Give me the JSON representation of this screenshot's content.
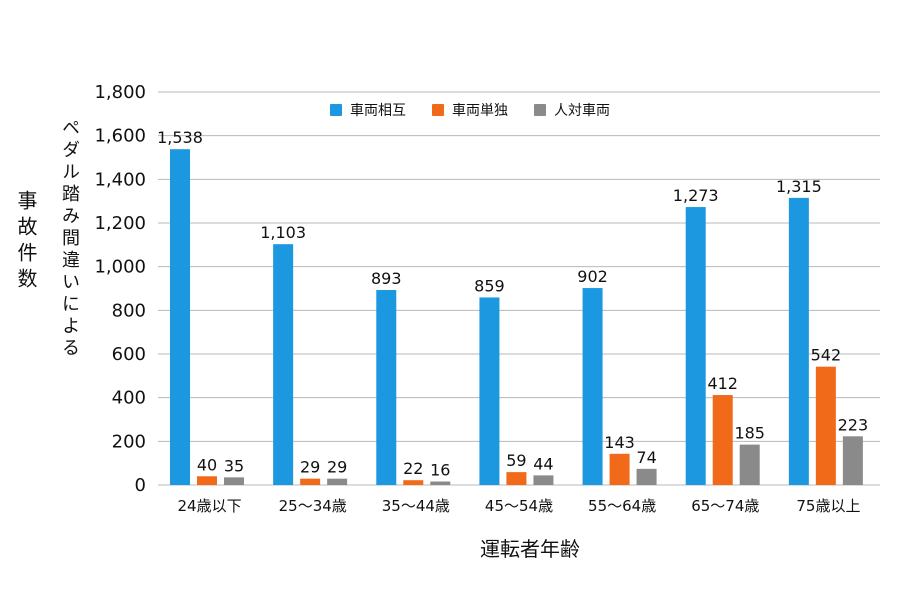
{
  "chart_data": {
    "type": "bar",
    "categories": [
      "24歳以下",
      "25〜34歳",
      "35〜44歳",
      "45〜54歳",
      "55〜64歳",
      "65〜74歳",
      "75歳以上"
    ],
    "series": [
      {
        "name": "車両相互",
        "values": [
          1538,
          1103,
          893,
          859,
          902,
          1273,
          1315
        ],
        "color": "#1b98e0"
      },
      {
        "name": "車両単独",
        "values": [
          40,
          29,
          22,
          59,
          143,
          412,
          542
        ],
        "color": "#f06a1a"
      },
      {
        "name": "人対車両",
        "values": [
          35,
          29,
          16,
          44,
          74,
          185,
          223
        ],
        "color": "#8a8a8a"
      }
    ],
    "title": "",
    "xlabel": "運転者年齢",
    "ylabel_left": "事故件数",
    "ylabel_right": "ペダル踏み間違いによる",
    "ylim": [
      0,
      1800
    ],
    "yticks": [
      0,
      200,
      400,
      600,
      800,
      1000,
      1200,
      1400,
      1600,
      1800
    ],
    "grid": "y",
    "legend_position": "top-center"
  }
}
